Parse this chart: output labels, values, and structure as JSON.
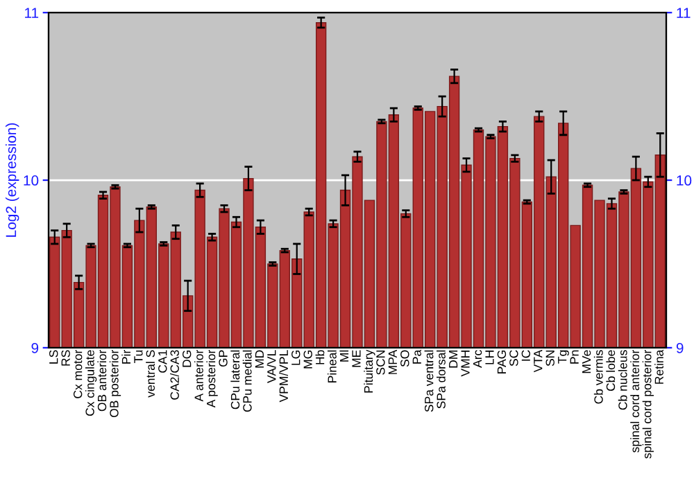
{
  "chart_data": {
    "type": "bar",
    "ylabel": "Log2 (expression)",
    "categories": [
      "LS",
      "RS",
      "Cx motor",
      "Cx cingulate",
      "OB anterior",
      "OB posterior",
      "Pir",
      "Tu",
      "ventral S",
      "CA1",
      "CA2/CA3",
      "DG",
      "A anterior",
      "A posterior",
      "GP",
      "CPu lateral",
      "CPu medial",
      "MD",
      "VA/VL",
      "VPM/VPL",
      "LG",
      "MG",
      "Hb",
      "Pineal",
      "Ml",
      "ME",
      "Pituitary",
      "SCN",
      "MPA",
      "SO",
      "Pa",
      "SPa ventral",
      "SPa dorsal",
      "DM",
      "VMH",
      "Arc",
      "LH",
      "PAG",
      "SC",
      "IC",
      "VTA",
      "SN",
      "Tg",
      "Pn",
      "MVe",
      "Cb vermis",
      "Cb lobe",
      "Cb nucleus",
      "spinal cord anterior",
      "spinal cord posterior",
      "Retina"
    ],
    "values": [
      9.66,
      9.7,
      9.39,
      9.61,
      9.91,
      9.96,
      9.61,
      9.76,
      9.84,
      9.62,
      9.69,
      9.31,
      9.94,
      9.66,
      9.83,
      9.75,
      10.01,
      9.72,
      9.5,
      9.58,
      9.53,
      9.81,
      10.94,
      9.74,
      9.94,
      10.14,
      9.88,
      10.35,
      10.39,
      9.8,
      10.43,
      10.41,
      10.44,
      10.62,
      10.09,
      10.3,
      10.26,
      10.32,
      10.13,
      9.87,
      10.38,
      10.02,
      10.34,
      9.73,
      9.97,
      9.88,
      9.86,
      9.93,
      10.07,
      9.99,
      10.15
    ],
    "errors": [
      0.04,
      0.04,
      0.04,
      0.01,
      0.02,
      0.01,
      0.01,
      0.07,
      0.01,
      0.01,
      0.04,
      0.09,
      0.04,
      0.02,
      0.02,
      0.03,
      0.07,
      0.04,
      0.01,
      0.01,
      0.09,
      0.02,
      0.03,
      0.02,
      0.09,
      0.03,
      null,
      0.01,
      0.04,
      0.02,
      0.01,
      null,
      0.06,
      0.04,
      0.04,
      0.01,
      0.01,
      0.03,
      0.02,
      0.01,
      0.03,
      0.1,
      0.07,
      null,
      0.01,
      null,
      0.03,
      0.01,
      0.07,
      0.03,
      0.13
    ],
    "color": "#b33030",
    "ylim": [
      9,
      11
    ],
    "yticks": [
      9,
      10,
      11
    ],
    "y2lim": [
      9,
      11
    ],
    "y2ticks": [
      9,
      10,
      11
    ],
    "ref_lines": [
      {
        "axis": "y",
        "value": 10,
        "color": "#ffffff"
      }
    ]
  }
}
